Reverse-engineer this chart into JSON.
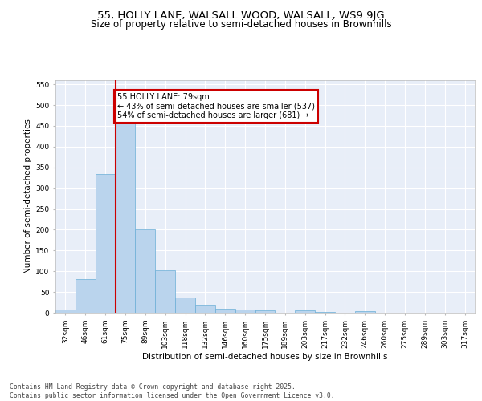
{
  "title1": "55, HOLLY LANE, WALSALL WOOD, WALSALL, WS9 9JG",
  "title2": "Size of property relative to semi-detached houses in Brownhills",
  "xlabel": "Distribution of semi-detached houses by size in Brownhills",
  "ylabel": "Number of semi-detached properties",
  "categories": [
    "32sqm",
    "46sqm",
    "61sqm",
    "75sqm",
    "89sqm",
    "103sqm",
    "118sqm",
    "132sqm",
    "146sqm",
    "160sqm",
    "175sqm",
    "189sqm",
    "203sqm",
    "217sqm",
    "232sqm",
    "246sqm",
    "260sqm",
    "275sqm",
    "289sqm",
    "303sqm",
    "317sqm"
  ],
  "values": [
    8,
    82,
    335,
    457,
    200,
    102,
    37,
    20,
    9,
    8,
    5,
    0,
    5,
    1,
    0,
    4,
    0,
    0,
    0,
    0,
    0
  ],
  "bar_color": "#bad4ed",
  "bar_edge_color": "#6aaed6",
  "highlight_bar_index": 3,
  "highlight_color": "#cc0000",
  "annotation_text": "55 HOLLY LANE: 79sqm\n← 43% of semi-detached houses are smaller (537)\n54% of semi-detached houses are larger (681) →",
  "annotation_box_color": "#ffffff",
  "annotation_box_edge": "#cc0000",
  "ylim": [
    0,
    560
  ],
  "yticks": [
    0,
    50,
    100,
    150,
    200,
    250,
    300,
    350,
    400,
    450,
    500,
    550
  ],
  "footer": "Contains HM Land Registry data © Crown copyright and database right 2025.\nContains public sector information licensed under the Open Government Licence v3.0.",
  "bg_color": "#e8eef8",
  "fig_bg_color": "#ffffff",
  "grid_color": "#ffffff",
  "title1_fontsize": 9.5,
  "title2_fontsize": 8.5,
  "axis_label_fontsize": 7.5,
  "tick_fontsize": 6.5,
  "footer_fontsize": 5.8,
  "ann_fontsize": 7.0
}
